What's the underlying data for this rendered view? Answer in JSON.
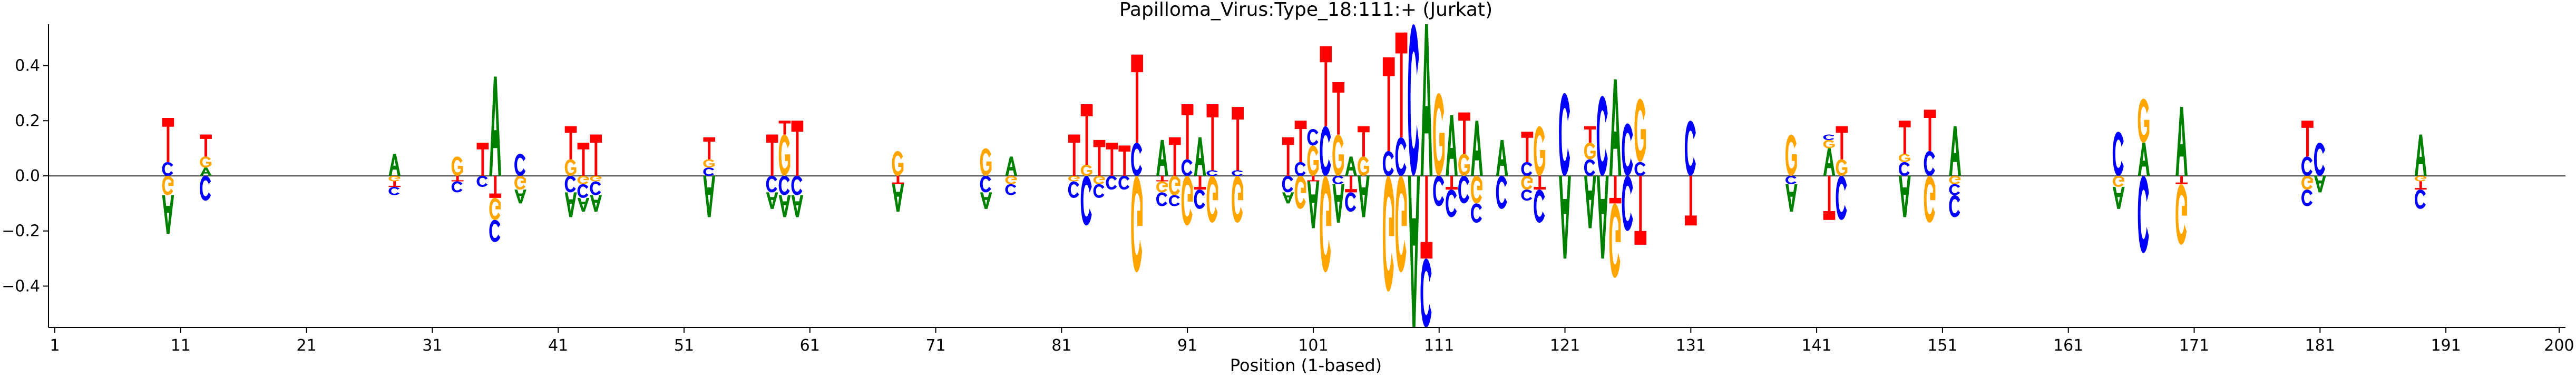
{
  "chart_data": {
    "type": "sequence-logo",
    "title": "Papilloma_Virus:Type_18:111:+  (Jurkat)",
    "xlabel": "Position (1-based)",
    "ylabel": "",
    "xlim": [
      1,
      200
    ],
    "ylim": [
      -0.55,
      0.55
    ],
    "xticks": [
      1,
      11,
      21,
      31,
      41,
      51,
      61,
      71,
      81,
      91,
      101,
      111,
      121,
      131,
      141,
      151,
      161,
      171,
      181,
      191,
      200
    ],
    "yticks": [
      -0.4,
      -0.2,
      0.0,
      0.2,
      0.4
    ],
    "ytick_labels": [
      "−0.4",
      "−0.2",
      "0.0",
      "0.2",
      "0.4"
    ],
    "grid": false,
    "legend": "none",
    "colors": {
      "A": "#008000",
      "C": "#0000ff",
      "G": "#ffa500",
      "T": "#ff0000"
    },
    "positions": [
      {
        "x": 10,
        "up": [
          [
            "C",
            0.05
          ],
          [
            "T",
            0.16
          ]
        ],
        "down": [
          [
            "G",
            0.07
          ],
          [
            "A",
            0.14
          ]
        ]
      },
      {
        "x": 13,
        "up": [
          [
            "A",
            0.03
          ],
          [
            "G",
            0.04
          ],
          [
            "T",
            0.08
          ]
        ],
        "down": [
          [
            "C",
            0.09
          ]
        ]
      },
      {
        "x": 28,
        "up": [
          [
            "A",
            0.08
          ]
        ],
        "down": [
          [
            "G",
            0.02
          ],
          [
            "T",
            0.02
          ],
          [
            "C",
            0.03
          ]
        ]
      },
      {
        "x": 33,
        "up": [
          [
            "G",
            0.07
          ]
        ],
        "down": [
          [
            "T",
            0.02
          ],
          [
            "C",
            0.04
          ]
        ]
      },
      {
        "x": 35,
        "up": [
          [
            "T",
            0.12
          ]
        ],
        "down": [
          [
            "C",
            0.04
          ]
        ]
      },
      {
        "x": 36,
        "up": [
          [
            "A",
            0.36
          ]
        ],
        "down": [
          [
            "T",
            0.08
          ],
          [
            "G",
            0.08
          ],
          [
            "C",
            0.08
          ]
        ]
      },
      {
        "x": 38,
        "up": [
          [
            "C",
            0.08
          ]
        ],
        "down": [
          [
            "G",
            0.05
          ],
          [
            "A",
            0.05
          ]
        ]
      },
      {
        "x": 42,
        "up": [
          [
            "G",
            0.06
          ],
          [
            "T",
            0.12
          ]
        ],
        "down": [
          [
            "C",
            0.06
          ],
          [
            "A",
            0.09
          ]
        ]
      },
      {
        "x": 43,
        "up": [
          [
            "T",
            0.12
          ]
        ],
        "down": [
          [
            "G",
            0.03
          ],
          [
            "C",
            0.05
          ],
          [
            "A",
            0.05
          ]
        ]
      },
      {
        "x": 44,
        "up": [
          [
            "T",
            0.15
          ]
        ],
        "down": [
          [
            "G",
            0.02
          ],
          [
            "C",
            0.05
          ],
          [
            "A",
            0.06
          ]
        ]
      },
      {
        "x": 53,
        "up": [
          [
            "C",
            0.03
          ],
          [
            "G",
            0.03
          ],
          [
            "T",
            0.08
          ]
        ],
        "down": [
          [
            "A",
            0.15
          ]
        ]
      },
      {
        "x": 58,
        "up": [
          [
            "T",
            0.15
          ]
        ],
        "down": [
          [
            "C",
            0.06
          ],
          [
            "A",
            0.06
          ]
        ]
      },
      {
        "x": 59,
        "up": [
          [
            "G",
            0.15
          ],
          [
            "T",
            0.05
          ]
        ],
        "down": [
          [
            "C",
            0.07
          ],
          [
            "A",
            0.08
          ]
        ]
      },
      {
        "x": 60,
        "up": [
          [
            "T",
            0.2
          ]
        ],
        "down": [
          [
            "C",
            0.07
          ],
          [
            "A",
            0.08
          ]
        ]
      },
      {
        "x": 68,
        "up": [
          [
            "G",
            0.09
          ]
        ],
        "down": [
          [
            "T",
            0.03
          ],
          [
            "A",
            0.1
          ]
        ]
      },
      {
        "x": 75,
        "up": [
          [
            "G",
            0.1
          ]
        ],
        "down": [
          [
            "C",
            0.06
          ],
          [
            "A",
            0.06
          ]
        ]
      },
      {
        "x": 77,
        "up": [
          [
            "A",
            0.07
          ]
        ],
        "down": [
          [
            "G",
            0.03
          ],
          [
            "C",
            0.04
          ]
        ]
      },
      {
        "x": 82,
        "up": [
          [
            "T",
            0.15
          ]
        ],
        "down": [
          [
            "G",
            0.02
          ],
          [
            "C",
            0.06
          ]
        ]
      },
      {
        "x": 83,
        "up": [
          [
            "G",
            0.04
          ],
          [
            "T",
            0.22
          ]
        ],
        "down": [
          [
            "C",
            0.18
          ]
        ]
      },
      {
        "x": 84,
        "up": [
          [
            "T",
            0.13
          ]
        ],
        "down": [
          [
            "G",
            0.03
          ],
          [
            "C",
            0.05
          ]
        ]
      },
      {
        "x": 85,
        "up": [
          [
            "T",
            0.12
          ]
        ],
        "down": [
          [
            "C",
            0.05
          ]
        ]
      },
      {
        "x": 86,
        "up": [
          [
            "T",
            0.11
          ]
        ],
        "down": [
          [
            "C",
            0.05
          ]
        ]
      },
      {
        "x": 87,
        "up": [
          [
            "C",
            0.12
          ],
          [
            "T",
            0.32
          ]
        ],
        "down": [
          [
            "G",
            0.35
          ]
        ]
      },
      {
        "x": 89,
        "up": [
          [
            "A",
            0.13
          ]
        ],
        "down": [
          [
            "T",
            0.02
          ],
          [
            "G",
            0.04
          ],
          [
            "C",
            0.05
          ]
        ]
      },
      {
        "x": 90,
        "up": [
          [
            "T",
            0.14
          ]
        ],
        "down": [
          [
            "G",
            0.07
          ],
          [
            "C",
            0.04
          ]
        ]
      },
      {
        "x": 91,
        "up": [
          [
            "C",
            0.06
          ],
          [
            "T",
            0.2
          ]
        ],
        "down": [
          [
            "G",
            0.18
          ]
        ]
      },
      {
        "x": 92,
        "up": [
          [
            "A",
            0.14
          ]
        ],
        "down": [
          [
            "T",
            0.05
          ],
          [
            "C",
            0.07
          ]
        ]
      },
      {
        "x": 93,
        "up": [
          [
            "C",
            0.02
          ],
          [
            "T",
            0.24
          ]
        ],
        "down": [
          [
            "G",
            0.17
          ]
        ]
      },
      {
        "x": 95,
        "up": [
          [
            "C",
            0.02
          ],
          [
            "T",
            0.23
          ]
        ],
        "down": [
          [
            "G",
            0.17
          ]
        ]
      },
      {
        "x": 99,
        "up": [
          [
            "T",
            0.14
          ]
        ],
        "down": [
          [
            "C",
            0.06
          ],
          [
            "A",
            0.04
          ]
        ]
      },
      {
        "x": 100,
        "up": [
          [
            "C",
            0.05
          ],
          [
            "T",
            0.15
          ]
        ],
        "down": [
          [
            "G",
            0.12
          ]
        ]
      },
      {
        "x": 101,
        "up": [
          [
            "G",
            0.11
          ],
          [
            "C",
            0.06
          ]
        ],
        "down": [
          [
            "T",
            0.02
          ],
          [
            "A",
            0.17
          ]
        ]
      },
      {
        "x": 102,
        "up": [
          [
            "C",
            0.18
          ],
          [
            "T",
            0.29
          ]
        ],
        "down": [
          [
            "G",
            0.35
          ]
        ]
      },
      {
        "x": 103,
        "up": [
          [
            "G",
            0.15
          ],
          [
            "T",
            0.19
          ]
        ],
        "down": [
          [
            "C",
            0.03
          ],
          [
            "A",
            0.14
          ]
        ]
      },
      {
        "x": 104,
        "up": [
          [
            "A",
            0.07
          ]
        ],
        "down": [
          [
            "T",
            0.06
          ],
          [
            "C",
            0.07
          ]
        ]
      },
      {
        "x": 105,
        "up": [
          [
            "G",
            0.07
          ],
          [
            "T",
            0.11
          ]
        ],
        "down": [
          [
            "A",
            0.15
          ]
        ]
      },
      {
        "x": 107,
        "up": [
          [
            "C",
            0.09
          ],
          [
            "T",
            0.34
          ]
        ],
        "down": [
          [
            "G",
            0.42
          ]
        ]
      },
      {
        "x": 108,
        "up": [
          [
            "C",
            0.14
          ],
          [
            "T",
            0.38
          ]
        ],
        "down": [
          [
            "G",
            0.35
          ]
        ]
      },
      {
        "x": 109,
        "up": [
          [
            "C",
            0.55
          ]
        ],
        "down": [
          [
            "A",
            0.55
          ]
        ]
      },
      {
        "x": 110,
        "up": [
          [
            "A",
            0.55
          ]
        ],
        "down": [
          [
            "T",
            0.3
          ],
          [
            "C",
            0.25
          ]
        ]
      },
      {
        "x": 111,
        "up": [
          [
            "G",
            0.3
          ]
        ],
        "down": [
          [
            "C",
            0.11
          ]
        ]
      },
      {
        "x": 112,
        "up": [
          [
            "A",
            0.22
          ]
        ],
        "down": [
          [
            "T",
            0.05
          ],
          [
            "C",
            0.1
          ]
        ]
      },
      {
        "x": 113,
        "up": [
          [
            "G",
            0.08
          ],
          [
            "T",
            0.15
          ]
        ],
        "down": [
          [
            "C",
            0.1
          ]
        ]
      },
      {
        "x": 114,
        "up": [
          [
            "A",
            0.2
          ]
        ],
        "down": [
          [
            "G",
            0.1
          ],
          [
            "C",
            0.07
          ]
        ]
      },
      {
        "x": 116,
        "up": [
          [
            "A",
            0.13
          ]
        ],
        "down": [
          [
            "C",
            0.12
          ]
        ]
      },
      {
        "x": 118,
        "up": [
          [
            "C",
            0.05
          ],
          [
            "T",
            0.11
          ]
        ],
        "down": [
          [
            "G",
            0.05
          ],
          [
            "C",
            0.04
          ]
        ]
      },
      {
        "x": 119,
        "up": [
          [
            "G",
            0.18
          ]
        ],
        "down": [
          [
            "T",
            0.05
          ],
          [
            "C",
            0.12
          ]
        ]
      },
      {
        "x": 121,
        "up": [
          [
            "C",
            0.3
          ]
        ],
        "down": [
          [
            "A",
            0.3
          ]
        ]
      },
      {
        "x": 123,
        "up": [
          [
            "C",
            0.06
          ],
          [
            "G",
            0.06
          ],
          [
            "T",
            0.06
          ]
        ],
        "down": [
          [
            "A",
            0.19
          ]
        ]
      },
      {
        "x": 124,
        "up": [
          [
            "C",
            0.29
          ]
        ],
        "down": [
          [
            "A",
            0.3
          ]
        ]
      },
      {
        "x": 125,
        "up": [
          [
            "A",
            0.35
          ]
        ],
        "down": [
          [
            "T",
            0.1
          ],
          [
            "G",
            0.27
          ]
        ]
      },
      {
        "x": 126,
        "up": [
          [
            "C",
            0.19
          ]
        ],
        "down": [
          [
            "C",
            0.2
          ]
        ]
      },
      {
        "x": 127,
        "up": [
          [
            "C",
            0.05
          ],
          [
            "G",
            0.23
          ]
        ],
        "down": [
          [
            "T",
            0.25
          ]
        ]
      },
      {
        "x": 131,
        "up": [
          [
            "C",
            0.2
          ]
        ],
        "down": [
          [
            "T",
            0.18
          ]
        ]
      },
      {
        "x": 139,
        "up": [
          [
            "G",
            0.15
          ]
        ],
        "down": [
          [
            "C",
            0.03
          ],
          [
            "A",
            0.1
          ]
        ]
      },
      {
        "x": 142,
        "up": [
          [
            "A",
            0.1
          ],
          [
            "G",
            0.03
          ],
          [
            "C",
            0.02
          ]
        ],
        "down": [
          [
            "T",
            0.16
          ]
        ]
      },
      {
        "x": 143,
        "up": [
          [
            "G",
            0.06
          ],
          [
            "T",
            0.12
          ]
        ],
        "down": [
          [
            "C",
            0.16
          ]
        ]
      },
      {
        "x": 148,
        "up": [
          [
            "C",
            0.05
          ],
          [
            "G",
            0.03
          ],
          [
            "T",
            0.12
          ]
        ],
        "down": [
          [
            "A",
            0.15
          ]
        ]
      },
      {
        "x": 150,
        "up": [
          [
            "C",
            0.09
          ],
          [
            "T",
            0.15
          ]
        ],
        "down": [
          [
            "G",
            0.17
          ]
        ]
      },
      {
        "x": 152,
        "up": [
          [
            "A",
            0.18
          ]
        ],
        "down": [
          [
            "G",
            0.03
          ],
          [
            "C",
            0.04
          ],
          [
            "C",
            0.08
          ]
        ]
      },
      {
        "x": 165,
        "up": [
          [
            "C",
            0.16
          ]
        ],
        "down": [
          [
            "G",
            0.04
          ],
          [
            "A",
            0.08
          ]
        ]
      },
      {
        "x": 167,
        "up": [
          [
            "A",
            0.12
          ],
          [
            "G",
            0.16
          ]
        ],
        "down": [
          [
            "C",
            0.28
          ]
        ]
      },
      {
        "x": 170,
        "up": [
          [
            "A",
            0.25
          ]
        ],
        "down": [
          [
            "T",
            0.03
          ],
          [
            "G",
            0.22
          ]
        ]
      },
      {
        "x": 180,
        "up": [
          [
            "C",
            0.07
          ],
          [
            "T",
            0.13
          ]
        ],
        "down": [
          [
            "G",
            0.05
          ],
          [
            "C",
            0.06
          ]
        ]
      },
      {
        "x": 181,
        "up": [
          [
            "C",
            0.12
          ]
        ],
        "down": [
          [
            "A",
            0.06
          ]
        ]
      },
      {
        "x": 189,
        "up": [
          [
            "A",
            0.15
          ]
        ],
        "down": [
          [
            "G",
            0.02
          ],
          [
            "T",
            0.03
          ],
          [
            "C",
            0.07
          ]
        ]
      }
    ]
  }
}
